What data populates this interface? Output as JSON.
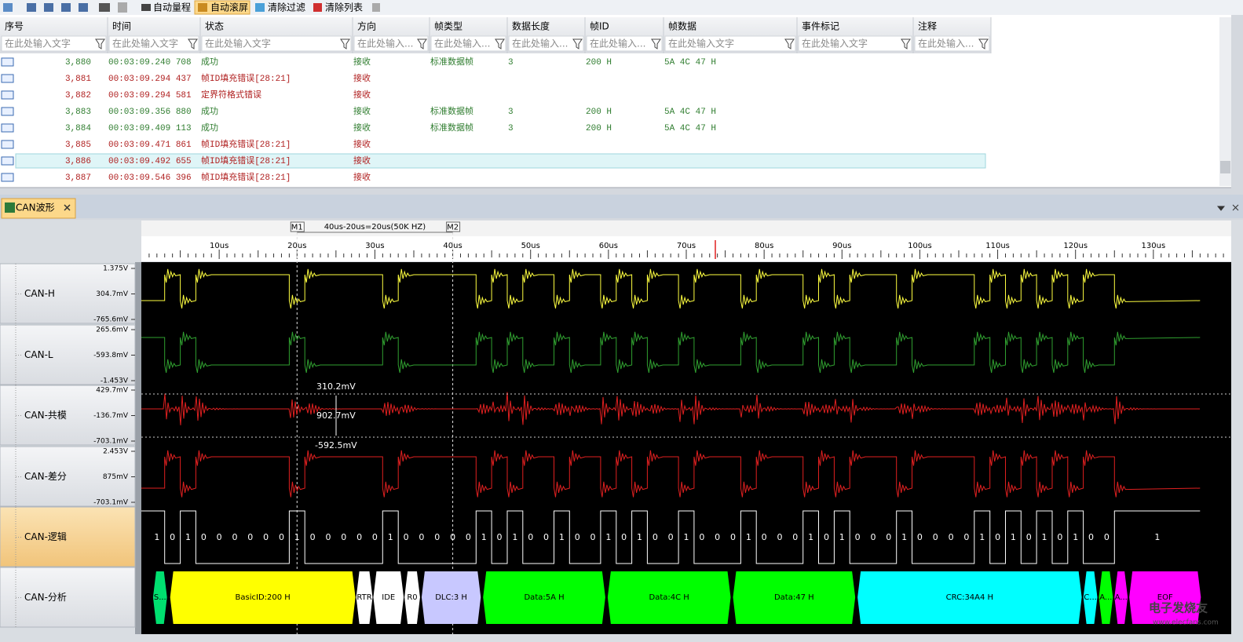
{
  "toolbar": {
    "buttons": [
      "自动量程",
      "自动滚屏",
      "清除过滤",
      "清除列表"
    ]
  },
  "table": {
    "headers": [
      "序号",
      "时间",
      "状态",
      "方向",
      "帧类型",
      "数据长度",
      "帧ID",
      "帧数据",
      "事件标记",
      "注释"
    ],
    "filters": [
      "在此处输入文字",
      "在此处输入文字",
      "在此处输入文字",
      "在此处输入...",
      "在此处输入...",
      "在此处输入...",
      "在此处输入...",
      "在此处输入文字",
      "在此处输入文字",
      "在此处输入..."
    ],
    "rows": [
      {
        "cells": [
          "3,880",
          "00:03:09.240 708",
          "成功",
          "接收",
          "标准数据帧",
          "3",
          "200 H",
          "5A 4C 47 H"
        ],
        "color": "#2f7d2f"
      },
      {
        "cells": [
          "3,881",
          "00:03:09.294 437",
          "帧ID填充错误[28:21]",
          "接收"
        ],
        "color": "#b02020"
      },
      {
        "cells": [
          "3,882",
          "00:03:09.294 581",
          "定界符格式错误",
          "接收"
        ],
        "color": "#b02020"
      },
      {
        "cells": [
          "3,883",
          "00:03:09.356 880",
          "成功",
          "接收",
          "标准数据帧",
          "3",
          "200 H",
          "5A 4C 47 H"
        ],
        "color": "#2f7d2f"
      },
      {
        "cells": [
          "3,884",
          "00:03:09.409 113",
          "成功",
          "接收",
          "标准数据帧",
          "3",
          "200 H",
          "5A 4C 47 H"
        ],
        "color": "#2f7d2f"
      },
      {
        "cells": [
          "3,885",
          "00:03:09.471 861",
          "帧ID填充错误[28:21]",
          "接收"
        ],
        "color": "#b02020"
      },
      {
        "cells": [
          "3,886",
          "00:03:09.492 655",
          "帧ID填充错误[28:21]",
          "接收"
        ],
        "color": "#b02020",
        "selected": true
      },
      {
        "cells": [
          "3,887",
          "00:03:09.546 396",
          "帧ID填充错误[28:21]",
          "接收"
        ],
        "color": "#b02020"
      }
    ]
  },
  "wave": {
    "tab": "CAN波形",
    "markers": [
      {
        "label": "M1",
        "value": 20
      },
      {
        "label": "M2",
        "value": 40
      }
    ],
    "measurement": "40us-20us=20us(50K HZ)",
    "xlim": [
      0,
      140
    ],
    "xticks": [
      {
        "value": 10,
        "label": "10us"
      },
      {
        "value": 20,
        "label": "20us"
      },
      {
        "value": 30,
        "label": "30us"
      },
      {
        "value": 40,
        "label": "40us"
      },
      {
        "value": 50,
        "label": "50us"
      },
      {
        "value": 60,
        "label": "60us"
      },
      {
        "value": 70,
        "label": "70us"
      },
      {
        "value": 80,
        "label": "80us"
      },
      {
        "value": 90,
        "label": "90us"
      },
      {
        "value": 100,
        "label": "100us"
      },
      {
        "value": 110,
        "label": "110us"
      },
      {
        "value": 120,
        "label": "120us"
      },
      {
        "value": 130,
        "label": "130us"
      }
    ],
    "channels": [
      {
        "name": "CAN-H",
        "color": "#ffff40",
        "scale": [
          "1.375V",
          "304.7mV",
          "-765.6mV"
        ]
      },
      {
        "name": "CAN-L",
        "color": "#30a030",
        "scale": [
          "265.6mV",
          "-593.8mV",
          "-1.453V"
        ]
      },
      {
        "name": "CAN-共模",
        "color": "#e02020",
        "scale": [
          "429.7mV",
          "-136.7mV",
          "-703.1mV"
        ]
      },
      {
        "name": "CAN-差分",
        "color": "#e02020",
        "scale": [
          "2.453V",
          "875mV",
          "-703.1mV"
        ]
      },
      {
        "name": "CAN-逻辑",
        "color": "#ffffff"
      },
      {
        "name": "CAN-分析"
      }
    ],
    "annotations": [
      "310.2mV",
      "902.7mV",
      "-592.5mV"
    ],
    "logic": {
      "edges": [
        1,
        3,
        5,
        7,
        9,
        11,
        13,
        15,
        17,
        19,
        21,
        23,
        25,
        27,
        29,
        31,
        33,
        35,
        37,
        39,
        41,
        43,
        45,
        47,
        49,
        51,
        53,
        55,
        57,
        59,
        61,
        63,
        65,
        67,
        69,
        71,
        73,
        75,
        77,
        79,
        81,
        83,
        85,
        87,
        89,
        91,
        93,
        95,
        97,
        99,
        101,
        103,
        105,
        107,
        109,
        111,
        113,
        115,
        117,
        119,
        121,
        123,
        125,
        136
      ],
      "bits": [
        "1",
        "0",
        "1",
        "0",
        "0",
        "0",
        "0",
        "0",
        "0",
        "1",
        "0",
        "0",
        "0",
        "0",
        "0",
        "1",
        "0",
        "0",
        "0",
        "0",
        "0",
        "1",
        "0",
        "1",
        "0",
        "0",
        "1",
        "0",
        "0",
        "1",
        "0",
        "1",
        "0",
        "0",
        "1",
        "0",
        "0",
        "0",
        "1",
        "0",
        "0",
        "0",
        "1",
        "0",
        "1",
        "0",
        "0",
        "0",
        "1",
        "0",
        "0",
        "0",
        "0",
        "1",
        "0",
        "1",
        "0",
        "1",
        "0",
        "1",
        "0",
        "0",
        "1"
      ]
    },
    "analysis": [
      {
        "label": "S...",
        "start": 1.5,
        "end": 3.3,
        "color": "#00e070"
      },
      {
        "label": "BasicID:200 H",
        "start": 3.7,
        "end": 27.5,
        "color": "#ffff00"
      },
      {
        "label": "RTR",
        "start": 27.6,
        "end": 29.7,
        "color": "#ffffff"
      },
      {
        "label": "IDE",
        "start": 29.8,
        "end": 33.7,
        "color": "#ffffff"
      },
      {
        "label": "R0",
        "start": 33.8,
        "end": 35.8,
        "color": "#ffffff"
      },
      {
        "label": "DLC:3 H",
        "start": 36,
        "end": 43.6,
        "color": "#c8c8ff"
      },
      {
        "label": "Data:5A H",
        "start": 43.9,
        "end": 59.6,
        "color": "#00ff00"
      },
      {
        "label": "Data:4C H",
        "start": 59.9,
        "end": 75.7,
        "color": "#00ff00"
      },
      {
        "label": "Data:47 H",
        "start": 76,
        "end": 91.7,
        "color": "#00ff00"
      },
      {
        "label": "CRC:34A4 H",
        "start": 92,
        "end": 120.8,
        "color": "#00ffff"
      },
      {
        "label": "C...",
        "start": 121,
        "end": 122.8,
        "color": "#00ffff"
      },
      {
        "label": "A...",
        "start": 123,
        "end": 124.8,
        "color": "#00ff00"
      },
      {
        "label": "A...",
        "start": 125,
        "end": 126.7,
        "color": "#ff00ff"
      },
      {
        "label": "EOF",
        "start": 126.9,
        "end": 136.1,
        "color": "#ff00ff"
      }
    ]
  },
  "watermark": [
    "电子发烧友",
    "www.elecfans.com"
  ]
}
